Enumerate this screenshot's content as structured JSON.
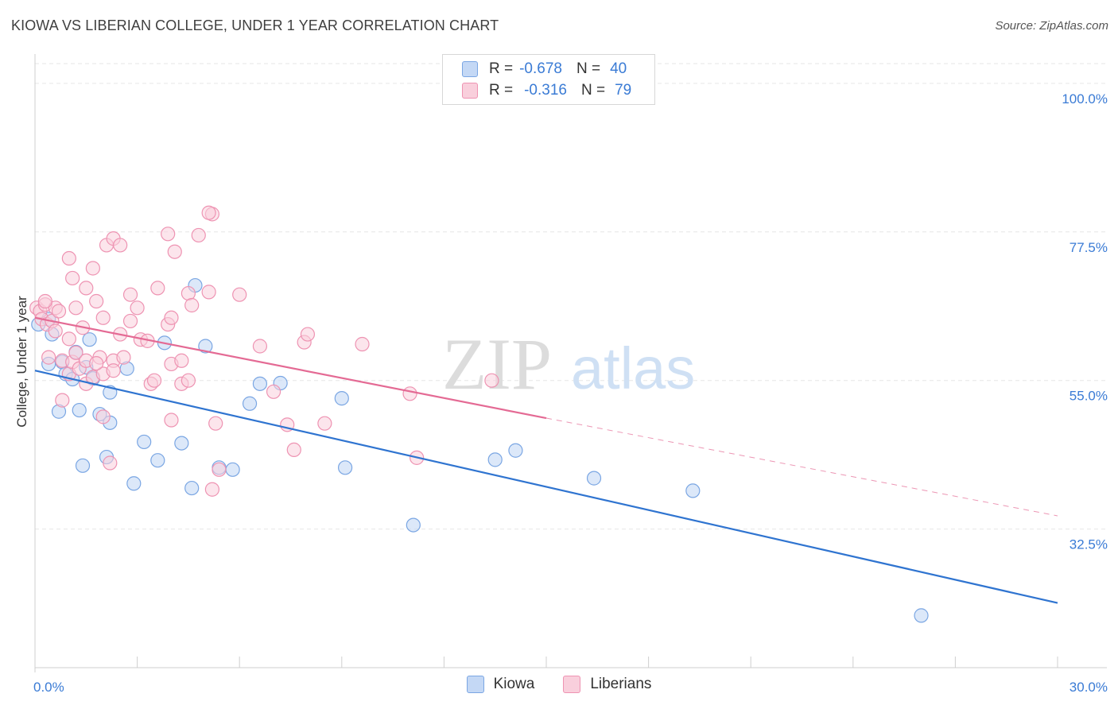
{
  "title": "KIOWA VS LIBERIAN COLLEGE, UNDER 1 YEAR CORRELATION CHART",
  "source": "Source: ZipAtlas.com",
  "watermark": {
    "zip": "ZIP",
    "atlas": "atlas"
  },
  "legend": {
    "rows": [
      {
        "r_label": "R =",
        "r_value": "-0.678",
        "n_label": "N =",
        "n_value": "40"
      },
      {
        "r_label": "R =",
        "r_value": "-0.316",
        "n_label": "N =",
        "n_value": "79"
      }
    ]
  },
  "bottom_legend": {
    "kiowa": "Kiowa",
    "liberians": "Liberians"
  },
  "colors": {
    "kiowa_fill": "#c4d8f5",
    "kiowa_stroke": "#7aa6e3",
    "kiowa_line": "#2f74d0",
    "lib_fill": "#f9cfdc",
    "lib_stroke": "#ee93b2",
    "lib_line": "#e46a94",
    "accent": "#3a7bd5"
  },
  "chart_data": {
    "type": "scatter",
    "title": "KIOWA VS LIBERIAN COLLEGE, UNDER 1 YEAR CORRELATION CHART",
    "xlabel": "",
    "ylabel": "College, Under 1 year",
    "xlim": [
      0,
      30
    ],
    "ylim": [
      11.5,
      103
    ],
    "x_tick_labels": [
      "0.0%",
      "30.0%"
    ],
    "y_ticks": [
      100,
      77.5,
      55,
      32.5
    ],
    "y_tick_labels": [
      "100.0%",
      "77.5%",
      "55.0%",
      "32.5%"
    ],
    "series": [
      {
        "name": "Kiowa",
        "r": -0.678,
        "n": 40,
        "trend": {
          "x0": 0,
          "y0": 56.5,
          "x1": 30,
          "y1": 21.3
        },
        "points": [
          [
            0.1,
            63.5
          ],
          [
            0.4,
            64.3
          ],
          [
            0.5,
            62.0
          ],
          [
            0.4,
            57.5
          ],
          [
            0.8,
            57.8
          ],
          [
            0.9,
            56.0
          ],
          [
            1.1,
            55.2
          ],
          [
            1.2,
            59.3
          ],
          [
            1.5,
            57.0
          ],
          [
            1.7,
            55.3
          ],
          [
            1.6,
            61.2
          ],
          [
            0.7,
            50.3
          ],
          [
            1.3,
            50.5
          ],
          [
            1.9,
            49.9
          ],
          [
            2.2,
            48.6
          ],
          [
            2.2,
            53.2
          ],
          [
            2.7,
            56.8
          ],
          [
            3.8,
            60.7
          ],
          [
            4.7,
            69.4
          ],
          [
            5.0,
            60.2
          ],
          [
            6.6,
            54.5
          ],
          [
            7.2,
            54.6
          ],
          [
            6.3,
            51.5
          ],
          [
            9.0,
            52.3
          ],
          [
            1.4,
            42.1
          ],
          [
            2.1,
            43.4
          ],
          [
            3.2,
            45.7
          ],
          [
            2.9,
            39.4
          ],
          [
            3.6,
            42.9
          ],
          [
            4.3,
            45.5
          ],
          [
            4.6,
            38.7
          ],
          [
            5.4,
            41.8
          ],
          [
            5.8,
            41.5
          ],
          [
            9.1,
            41.8
          ],
          [
            13.5,
            43.0
          ],
          [
            14.1,
            44.4
          ],
          [
            16.4,
            40.2
          ],
          [
            19.3,
            38.3
          ],
          [
            11.1,
            33.1
          ],
          [
            26.0,
            19.4
          ]
        ]
      },
      {
        "name": "Liberians",
        "r": -0.316,
        "n": 79,
        "trend": {
          "x0": 0,
          "y0": 64.5,
          "x1": 15,
          "y1": 49.3,
          "dash_to_x": 30,
          "dash_to_y": 34.5
        },
        "points": [
          [
            0.05,
            66.0
          ],
          [
            0.15,
            65.5
          ],
          [
            0.2,
            64.3
          ],
          [
            0.3,
            66.5
          ],
          [
            0.35,
            63.5
          ],
          [
            0.5,
            64.0
          ],
          [
            0.6,
            62.5
          ],
          [
            0.6,
            66.0
          ],
          [
            0.7,
            65.5
          ],
          [
            0.4,
            58.5
          ],
          [
            0.8,
            58.0
          ],
          [
            1.0,
            61.3
          ],
          [
            1.0,
            56.0
          ],
          [
            1.1,
            57.8
          ],
          [
            1.2,
            59.2
          ],
          [
            1.3,
            56.8
          ],
          [
            1.5,
            58.0
          ],
          [
            1.5,
            54.5
          ],
          [
            1.4,
            63.0
          ],
          [
            1.7,
            55.5
          ],
          [
            1.9,
            58.5
          ],
          [
            2.0,
            56.0
          ],
          [
            1.8,
            57.6
          ],
          [
            2.3,
            58.0
          ],
          [
            2.3,
            56.5
          ],
          [
            2.5,
            62.0
          ],
          [
            2.6,
            58.5
          ],
          [
            2.8,
            64.0
          ],
          [
            3.0,
            66.0
          ],
          [
            3.1,
            61.2
          ],
          [
            3.3,
            61.0
          ],
          [
            3.4,
            54.5
          ],
          [
            3.5,
            55.0
          ],
          [
            3.9,
            63.5
          ],
          [
            4.0,
            64.5
          ],
          [
            4.0,
            57.5
          ],
          [
            4.3,
            58.0
          ],
          [
            4.3,
            54.5
          ],
          [
            4.5,
            55.0
          ],
          [
            4.0,
            49.0
          ],
          [
            3.6,
            69.0
          ],
          [
            4.1,
            74.5
          ],
          [
            4.5,
            68.2
          ],
          [
            4.6,
            66.4
          ],
          [
            5.1,
            68.4
          ],
          [
            5.3,
            48.5
          ],
          [
            5.4,
            41.5
          ],
          [
            5.2,
            38.5
          ],
          [
            6.6,
            60.2
          ],
          [
            7.0,
            53.3
          ],
          [
            7.4,
            48.3
          ],
          [
            7.6,
            44.5
          ],
          [
            7.9,
            60.8
          ],
          [
            8.0,
            62.0
          ],
          [
            8.5,
            48.5
          ],
          [
            1.0,
            73.5
          ],
          [
            1.1,
            70.5
          ],
          [
            1.5,
            69.0
          ],
          [
            1.7,
            72.0
          ],
          [
            1.8,
            67.0
          ],
          [
            2.0,
            64.5
          ],
          [
            2.1,
            75.5
          ],
          [
            2.3,
            76.5
          ],
          [
            2.5,
            75.5
          ],
          [
            2.8,
            68.0
          ],
          [
            3.9,
            77.2
          ],
          [
            4.8,
            77.0
          ],
          [
            5.2,
            80.2
          ],
          [
            5.1,
            80.4
          ],
          [
            6.0,
            68.0
          ],
          [
            9.6,
            60.5
          ],
          [
            11.0,
            53.0
          ],
          [
            11.2,
            43.3
          ],
          [
            13.4,
            55.0
          ],
          [
            0.8,
            52.0
          ],
          [
            2.0,
            49.5
          ],
          [
            2.2,
            42.5
          ],
          [
            0.3,
            67.0
          ],
          [
            1.2,
            66.0
          ]
        ]
      }
    ]
  }
}
